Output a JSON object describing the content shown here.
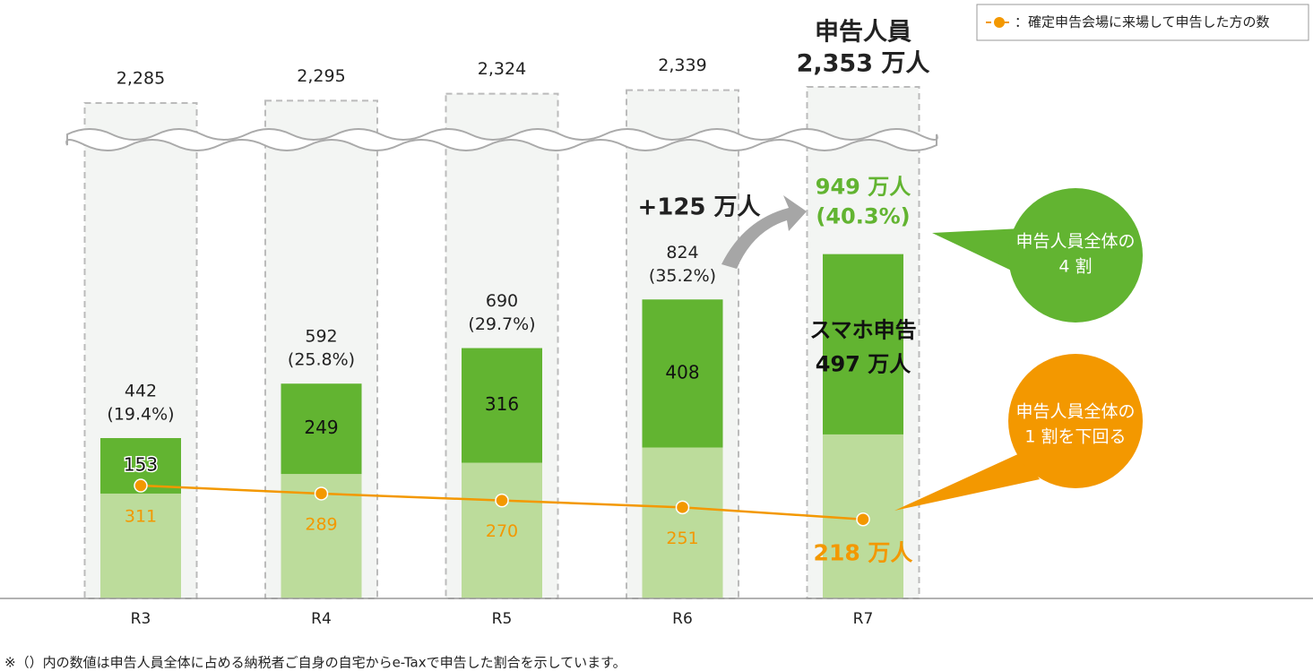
{
  "chart_data": {
    "type": "bar",
    "categories": [
      "R3",
      "R4",
      "R5",
      "R6",
      "R7"
    ],
    "ylim": [
      0,
      1100
    ],
    "y2lim": [
      2200,
      2400
    ],
    "series": [
      {
        "name": "スマホ申告",
        "color": "#62b431",
        "values": [
          153,
          249,
          316,
          408,
          497
        ],
        "value_labels": [
          "153",
          "249",
          "316",
          "408",
          "497 万人"
        ]
      },
      {
        "color": "#bcdc9b",
        "values": [
          289,
          343,
          374,
          416,
          452
        ]
      },
      {
        "name": "：確定申告会場に来場して申告した方の数",
        "color": "#f39800",
        "type": "line",
        "values": [
          311,
          289,
          270,
          251,
          218
        ],
        "value_labels": [
          "311",
          "289",
          "270",
          "251",
          "218 万人"
        ]
      }
    ],
    "totals": [
      442,
      592,
      690,
      824,
      949
    ],
    "total_labels": [
      "442",
      "592",
      "690",
      "824",
      "949 万人"
    ],
    "shares": [
      19.4,
      25.8,
      29.7,
      35.2,
      40.3
    ],
    "share_labels": [
      "(19.4%)",
      "(25.8%)",
      "(29.7%)",
      "(35.2%)",
      "(40.3%)"
    ],
    "filers_title": "申告人員",
    "filers": [
      2285,
      2295,
      2324,
      2339,
      2353
    ],
    "filer_labels": [
      "2,285",
      "2,295",
      "2,324",
      "2,339",
      "2,353 万人"
    ],
    "annotations": {
      "increase": "+125 万人",
      "bubble_green": [
        "申告人員全体の",
        "4 割"
      ],
      "bubble_orange": [
        "申告人員全体の",
        "1 割を下回る"
      ]
    },
    "footnote": "※（）内の数値は申告人員全体に占める納税者ご自身の自宅からe-Taxで申告した割合を示しています。"
  }
}
